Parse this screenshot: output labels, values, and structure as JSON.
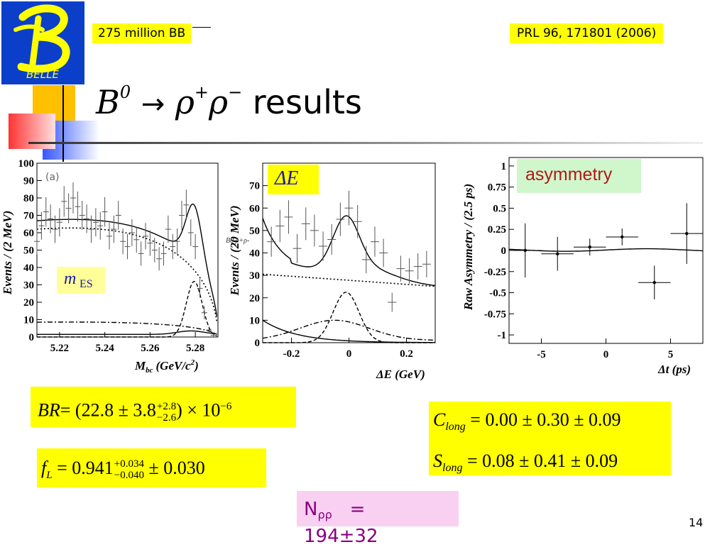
{
  "header": {
    "logo_text": "BELLE",
    "dataset_tag": "275 million BB",
    "reference_tag": "PRL 96, 171801 (2006)"
  },
  "title": {
    "decay": "B",
    "decay_sup": "0",
    "arrow": "→",
    "rho": "ρ",
    "rho_plus": "+",
    "rho_minus": "−",
    "word": "results"
  },
  "colors": {
    "yellow": "#ffff00",
    "pink": "#fad0f2",
    "logo_blue": "#0b3fc9",
    "accent_red": "#ff3333",
    "accent_orange": "#ffc000",
    "accent_blue": "#3355ff"
  },
  "plot_mbc": {
    "panel_label": "(a)",
    "badge": "m",
    "badge_sub": "ES",
    "xlabel": "M",
    "xlabel_sub": "bc",
    "xlabel_unit": "(GeV/c",
    "xlabel_unit_sup": "2",
    "xlabel_close": ")",
    "ylabel": "Events / (2 MeV)",
    "yticks": [
      "0",
      "10",
      "20",
      "30",
      "40",
      "50",
      "60",
      "70",
      "80",
      "90",
      "100"
    ],
    "xticks": [
      "5.22",
      "5.24",
      "5.26",
      "5.28"
    ]
  },
  "plot_de": {
    "badge": "ΔE",
    "ylabel": "Events / (20 MeV)",
    "xlabel": "ΔE (GeV)",
    "yticks": [
      "0",
      "10",
      "20",
      "30",
      "40",
      "50",
      "60",
      "70"
    ],
    "xticks": [
      "-0.2",
      "0",
      "0.2"
    ],
    "overlay_label": "B0 ρ+ρ-"
  },
  "plot_asym": {
    "badge": "asymmetry",
    "ylabel": "Raw Asymmetry / (2.5 ps)",
    "xlabel": "Δt (ps)",
    "yticks": [
      "1",
      "0.75",
      "0.5",
      "0.25",
      "0",
      "-0.25",
      "-0.5",
      "-0.75",
      "-1"
    ],
    "xticks": [
      "-5",
      "0",
      "5"
    ]
  },
  "chart_data": [
    {
      "type": "scatter",
      "x": [
        5.21,
        5.212,
        5.214,
        5.216,
        5.218,
        5.22,
        5.222,
        5.224,
        5.226,
        5.228,
        5.23,
        5.232,
        5.234,
        5.236,
        5.238,
        5.24,
        5.242,
        5.244,
        5.246,
        5.248,
        5.25,
        5.252,
        5.254,
        5.256,
        5.258,
        5.26,
        5.262,
        5.264,
        5.266,
        5.268,
        5.27,
        5.272,
        5.274,
        5.276,
        5.278,
        5.28,
        5.282,
        5.284,
        5.286,
        5.288
      ],
      "y": [
        55,
        64,
        72,
        68,
        62,
        66,
        78,
        74,
        80,
        75,
        70,
        68,
        62,
        66,
        64,
        72,
        58,
        62,
        70,
        55,
        52,
        60,
        56,
        48,
        58,
        54,
        50,
        45,
        48,
        62,
        52,
        55,
        70,
        76,
        60,
        52,
        28,
        14,
        4,
        1
      ],
      "xlim": [
        5.21,
        5.29
      ],
      "ylim": [
        0,
        100
      ]
    },
    {
      "type": "scatter",
      "x": [
        -0.27,
        -0.24,
        -0.21,
        -0.18,
        -0.15,
        -0.12,
        -0.09,
        -0.06,
        -0.03,
        0.0,
        0.03,
        0.06,
        0.09,
        0.12,
        0.15,
        0.18,
        0.21,
        0.24,
        0.27
      ],
      "y": [
        45,
        52,
        56,
        42,
        53,
        50,
        43,
        46,
        55,
        60,
        54,
        37,
        45,
        40,
        18,
        33,
        32,
        34,
        35
      ],
      "xlim": [
        -0.3,
        0.3
      ],
      "ylim": [
        0,
        80
      ]
    },
    {
      "type": "scatter",
      "x": [
        -6.25,
        -3.75,
        -1.25,
        1.25,
        3.75,
        6.25
      ],
      "y": [
        0.0,
        -0.04,
        0.04,
        0.16,
        -0.38,
        0.2
      ],
      "yerr": [
        0.32,
        0.2,
        0.1,
        0.1,
        0.2,
        0.36
      ],
      "xlim": [
        -7.5,
        7.5
      ],
      "ylim": [
        -1.1,
        1.1
      ]
    }
  ],
  "formulas": {
    "br_lhs": "BR",
    "br_mid": "= (22.8 ± 3.8",
    "br_up": "+2.8",
    "br_down": "−2.6",
    "br_rhs": ") × 10",
    "br_exp": "−6",
    "fl_lhs": "f",
    "fl_sub": "L",
    "fl_mid": "= 0.941",
    "fl_up": "+0.034",
    "fl_down": "−0.040",
    "fl_rhs": "± 0.030",
    "c_lhs": "C",
    "c_sub": "long",
    "c_rhs": "= 0.00 ± 0.30 ± 0.09",
    "s_lhs": "S",
    "s_sub": "long",
    "s_rhs": "= 0.08 ± 0.41 ± 0.09",
    "n_label": "N",
    "n_sub": "ρρ",
    "n_eq": "=",
    "n_value": "194±32"
  },
  "page_number": "14"
}
